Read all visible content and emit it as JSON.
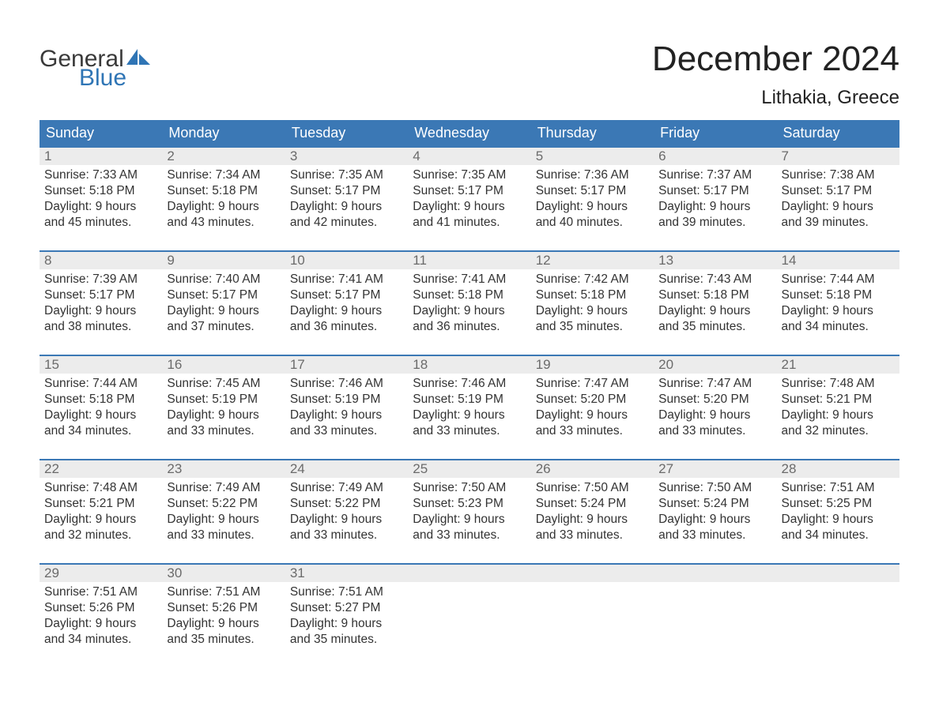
{
  "brand": {
    "line1": "General",
    "line2": "Blue",
    "text_color": "#3a3a3a",
    "accent_color": "#2f75b5"
  },
  "title": "December 2024",
  "location": "Lithakia, Greece",
  "colors": {
    "header_bg": "#3b78b5",
    "header_text": "#ffffff",
    "daynum_bg": "#ececec",
    "daynum_text": "#6b6b6b",
    "body_text": "#333333",
    "rule": "#3b78b5",
    "page_bg": "#ffffff"
  },
  "fonts": {
    "title_size_pt": 33,
    "location_size_pt": 18,
    "weekday_size_pt": 14,
    "daynum_size_pt": 13,
    "body_size_pt": 12
  },
  "weekdays": [
    "Sunday",
    "Monday",
    "Tuesday",
    "Wednesday",
    "Thursday",
    "Friday",
    "Saturday"
  ],
  "weeks": [
    [
      {
        "n": "1",
        "sunrise": "Sunrise: 7:33 AM",
        "sunset": "Sunset: 5:18 PM",
        "d1": "Daylight: 9 hours",
        "d2": "and 45 minutes."
      },
      {
        "n": "2",
        "sunrise": "Sunrise: 7:34 AM",
        "sunset": "Sunset: 5:18 PM",
        "d1": "Daylight: 9 hours",
        "d2": "and 43 minutes."
      },
      {
        "n": "3",
        "sunrise": "Sunrise: 7:35 AM",
        "sunset": "Sunset: 5:17 PM",
        "d1": "Daylight: 9 hours",
        "d2": "and 42 minutes."
      },
      {
        "n": "4",
        "sunrise": "Sunrise: 7:35 AM",
        "sunset": "Sunset: 5:17 PM",
        "d1": "Daylight: 9 hours",
        "d2": "and 41 minutes."
      },
      {
        "n": "5",
        "sunrise": "Sunrise: 7:36 AM",
        "sunset": "Sunset: 5:17 PM",
        "d1": "Daylight: 9 hours",
        "d2": "and 40 minutes."
      },
      {
        "n": "6",
        "sunrise": "Sunrise: 7:37 AM",
        "sunset": "Sunset: 5:17 PM",
        "d1": "Daylight: 9 hours",
        "d2": "and 39 minutes."
      },
      {
        "n": "7",
        "sunrise": "Sunrise: 7:38 AM",
        "sunset": "Sunset: 5:17 PM",
        "d1": "Daylight: 9 hours",
        "d2": "and 39 minutes."
      }
    ],
    [
      {
        "n": "8",
        "sunrise": "Sunrise: 7:39 AM",
        "sunset": "Sunset: 5:17 PM",
        "d1": "Daylight: 9 hours",
        "d2": "and 38 minutes."
      },
      {
        "n": "9",
        "sunrise": "Sunrise: 7:40 AM",
        "sunset": "Sunset: 5:17 PM",
        "d1": "Daylight: 9 hours",
        "d2": "and 37 minutes."
      },
      {
        "n": "10",
        "sunrise": "Sunrise: 7:41 AM",
        "sunset": "Sunset: 5:17 PM",
        "d1": "Daylight: 9 hours",
        "d2": "and 36 minutes."
      },
      {
        "n": "11",
        "sunrise": "Sunrise: 7:41 AM",
        "sunset": "Sunset: 5:18 PM",
        "d1": "Daylight: 9 hours",
        "d2": "and 36 minutes."
      },
      {
        "n": "12",
        "sunrise": "Sunrise: 7:42 AM",
        "sunset": "Sunset: 5:18 PM",
        "d1": "Daylight: 9 hours",
        "d2": "and 35 minutes."
      },
      {
        "n": "13",
        "sunrise": "Sunrise: 7:43 AM",
        "sunset": "Sunset: 5:18 PM",
        "d1": "Daylight: 9 hours",
        "d2": "and 35 minutes."
      },
      {
        "n": "14",
        "sunrise": "Sunrise: 7:44 AM",
        "sunset": "Sunset: 5:18 PM",
        "d1": "Daylight: 9 hours",
        "d2": "and 34 minutes."
      }
    ],
    [
      {
        "n": "15",
        "sunrise": "Sunrise: 7:44 AM",
        "sunset": "Sunset: 5:18 PM",
        "d1": "Daylight: 9 hours",
        "d2": "and 34 minutes."
      },
      {
        "n": "16",
        "sunrise": "Sunrise: 7:45 AM",
        "sunset": "Sunset: 5:19 PM",
        "d1": "Daylight: 9 hours",
        "d2": "and 33 minutes."
      },
      {
        "n": "17",
        "sunrise": "Sunrise: 7:46 AM",
        "sunset": "Sunset: 5:19 PM",
        "d1": "Daylight: 9 hours",
        "d2": "and 33 minutes."
      },
      {
        "n": "18",
        "sunrise": "Sunrise: 7:46 AM",
        "sunset": "Sunset: 5:19 PM",
        "d1": "Daylight: 9 hours",
        "d2": "and 33 minutes."
      },
      {
        "n": "19",
        "sunrise": "Sunrise: 7:47 AM",
        "sunset": "Sunset: 5:20 PM",
        "d1": "Daylight: 9 hours",
        "d2": "and 33 minutes."
      },
      {
        "n": "20",
        "sunrise": "Sunrise: 7:47 AM",
        "sunset": "Sunset: 5:20 PM",
        "d1": "Daylight: 9 hours",
        "d2": "and 33 minutes."
      },
      {
        "n": "21",
        "sunrise": "Sunrise: 7:48 AM",
        "sunset": "Sunset: 5:21 PM",
        "d1": "Daylight: 9 hours",
        "d2": "and 32 minutes."
      }
    ],
    [
      {
        "n": "22",
        "sunrise": "Sunrise: 7:48 AM",
        "sunset": "Sunset: 5:21 PM",
        "d1": "Daylight: 9 hours",
        "d2": "and 32 minutes."
      },
      {
        "n": "23",
        "sunrise": "Sunrise: 7:49 AM",
        "sunset": "Sunset: 5:22 PM",
        "d1": "Daylight: 9 hours",
        "d2": "and 33 minutes."
      },
      {
        "n": "24",
        "sunrise": "Sunrise: 7:49 AM",
        "sunset": "Sunset: 5:22 PM",
        "d1": "Daylight: 9 hours",
        "d2": "and 33 minutes."
      },
      {
        "n": "25",
        "sunrise": "Sunrise: 7:50 AM",
        "sunset": "Sunset: 5:23 PM",
        "d1": "Daylight: 9 hours",
        "d2": "and 33 minutes."
      },
      {
        "n": "26",
        "sunrise": "Sunrise: 7:50 AM",
        "sunset": "Sunset: 5:24 PM",
        "d1": "Daylight: 9 hours",
        "d2": "and 33 minutes."
      },
      {
        "n": "27",
        "sunrise": "Sunrise: 7:50 AM",
        "sunset": "Sunset: 5:24 PM",
        "d1": "Daylight: 9 hours",
        "d2": "and 33 minutes."
      },
      {
        "n": "28",
        "sunrise": "Sunrise: 7:51 AM",
        "sunset": "Sunset: 5:25 PM",
        "d1": "Daylight: 9 hours",
        "d2": "and 34 minutes."
      }
    ],
    [
      {
        "n": "29",
        "sunrise": "Sunrise: 7:51 AM",
        "sunset": "Sunset: 5:26 PM",
        "d1": "Daylight: 9 hours",
        "d2": "and 34 minutes."
      },
      {
        "n": "30",
        "sunrise": "Sunrise: 7:51 AM",
        "sunset": "Sunset: 5:26 PM",
        "d1": "Daylight: 9 hours",
        "d2": "and 35 minutes."
      },
      {
        "n": "31",
        "sunrise": "Sunrise: 7:51 AM",
        "sunset": "Sunset: 5:27 PM",
        "d1": "Daylight: 9 hours",
        "d2": "and 35 minutes."
      },
      {
        "n": "",
        "sunrise": "",
        "sunset": "",
        "d1": "",
        "d2": ""
      },
      {
        "n": "",
        "sunrise": "",
        "sunset": "",
        "d1": "",
        "d2": ""
      },
      {
        "n": "",
        "sunrise": "",
        "sunset": "",
        "d1": "",
        "d2": ""
      },
      {
        "n": "",
        "sunrise": "",
        "sunset": "",
        "d1": "",
        "d2": ""
      }
    ]
  ]
}
